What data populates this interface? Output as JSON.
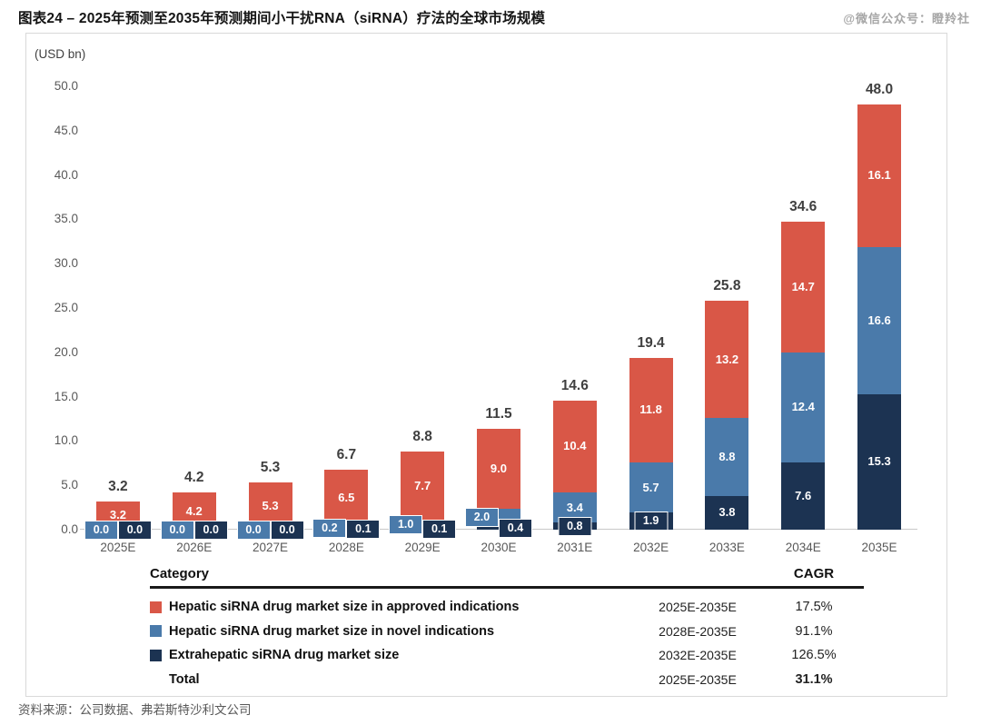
{
  "page": {
    "title": "图表24 – 2025年预测至2035年预测期间小干扰RNA（siRNA）疗法的全球市场规模",
    "watermark": "@微信公众号：瞪羚社",
    "source": "资料来源：公司数据、弗若斯特沙利文公司"
  },
  "chart_data": {
    "type": "bar",
    "stacked": true,
    "title": "2025年预测至2035年预测期间小干扰RNA（siRNA）疗法的全球市场规模",
    "unit_label": "(USD bn)",
    "xlabel": "",
    "ylabel": "(USD bn)",
    "ylim": [
      0,
      50
    ],
    "yticks": [
      0,
      5,
      10,
      15,
      20,
      25,
      30,
      35,
      40,
      45,
      50
    ],
    "grid": false,
    "legend_position": "table-below",
    "categories": [
      "2025E",
      "2026E",
      "2027E",
      "2028E",
      "2029E",
      "2030E",
      "2031E",
      "2032E",
      "2033E",
      "2034E",
      "2035E"
    ],
    "series": [
      {
        "name": "Hepatic siRNA drug market size in approved indications",
        "color": "#D95747",
        "values": [
          3.2,
          4.2,
          5.3,
          6.5,
          7.7,
          9.0,
          10.4,
          11.8,
          13.2,
          14.7,
          16.1
        ]
      },
      {
        "name": "Hepatic siRNA drug market size in novel indications",
        "color": "#4A7AAA",
        "values": [
          0.0,
          0.0,
          0.0,
          0.2,
          1.0,
          2.0,
          3.4,
          5.7,
          8.8,
          12.4,
          16.6
        ]
      },
      {
        "name": "Extrahepatic siRNA drug market size",
        "color": "#1C3352",
        "values": [
          0.0,
          0.0,
          0.0,
          0.1,
          0.1,
          0.4,
          0.8,
          1.9,
          3.8,
          7.6,
          15.3
        ]
      }
    ],
    "stack_order_bottom_to_top": [
      2,
      1,
      0
    ],
    "totals": [
      3.2,
      4.2,
      5.3,
      6.7,
      8.8,
      11.5,
      14.6,
      19.4,
      25.8,
      34.6,
      48.0
    ]
  },
  "legend_table": {
    "headers": {
      "category": "Category",
      "cagr": "CAGR"
    },
    "rows": [
      {
        "label": "Hepatic siRNA drug market size in approved indications",
        "series_index": 0,
        "period": "2025E-2035E",
        "cagr": "17.5%",
        "bold_cagr": false
      },
      {
        "label": "Hepatic siRNA drug market size in novel indications",
        "series_index": 1,
        "period": "2028E-2035E",
        "cagr": "91.1%",
        "bold_cagr": false
      },
      {
        "label": "Extrahepatic siRNA drug market size",
        "series_index": 2,
        "period": "2032E-2035E",
        "cagr": "126.5%",
        "bold_cagr": false
      },
      {
        "label": "Total",
        "series_index": null,
        "period": "2025E-2035E",
        "cagr": "31.1%",
        "bold_cagr": true
      }
    ]
  }
}
